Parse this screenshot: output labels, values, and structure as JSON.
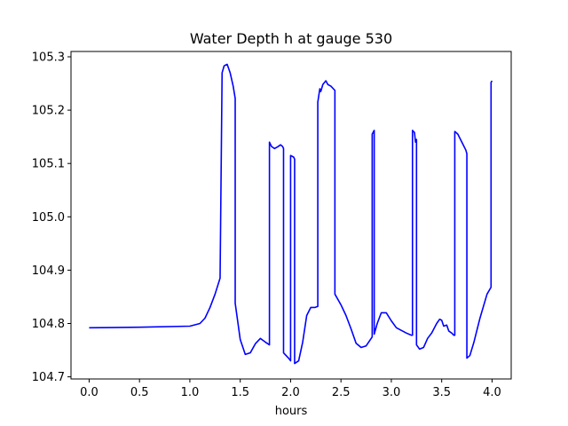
{
  "chart_data": {
    "type": "line",
    "title": "Water Depth h at gauge 530",
    "xlabel": "hours",
    "ylabel": "",
    "xlim": [
      -0.18,
      4.19
    ],
    "ylim": [
      104.696,
      105.31
    ],
    "xticks": [
      0.0,
      0.5,
      1.0,
      1.5,
      2.0,
      2.5,
      3.0,
      3.5,
      4.0
    ],
    "xtick_labels": [
      "0.0",
      "0.5",
      "1.0",
      "1.5",
      "2.0",
      "2.5",
      "3.0",
      "3.5",
      "4.0"
    ],
    "yticks": [
      104.7,
      104.8,
      104.9,
      105.0,
      105.1,
      105.2,
      105.3
    ],
    "ytick_labels": [
      "104.7",
      "104.8",
      "104.9",
      "105.0",
      "105.1",
      "105.2",
      "105.3"
    ],
    "grid": false,
    "legend": "none",
    "series": [
      {
        "color": "#0000ff",
        "x": [
          0.0,
          0.5,
          1.0,
          1.1,
          1.15,
          1.2,
          1.25,
          1.3,
          1.32,
          1.32,
          1.34,
          1.37,
          1.4,
          1.43,
          1.45,
          1.45,
          1.5,
          1.55,
          1.6,
          1.65,
          1.7,
          1.75,
          1.79,
          1.79,
          1.81,
          1.84,
          1.87,
          1.9,
          1.92,
          1.93,
          1.93,
          1.98,
          2.0,
          2.0,
          2.03,
          2.04,
          2.04,
          2.08,
          2.12,
          2.16,
          2.2,
          2.24,
          2.27,
          2.27,
          2.29,
          2.3,
          2.32,
          2.35,
          2.37,
          2.4,
          2.44,
          2.44,
          2.5,
          2.55,
          2.6,
          2.65,
          2.7,
          2.75,
          2.8,
          2.81,
          2.81,
          2.83,
          2.83,
          2.86,
          2.9,
          2.95,
          3.0,
          3.05,
          3.1,
          3.15,
          3.2,
          3.21,
          3.21,
          3.23,
          3.24,
          3.25,
          3.25,
          3.28,
          3.32,
          3.36,
          3.4,
          3.45,
          3.48,
          3.5,
          3.52,
          3.55,
          3.57,
          3.6,
          3.62,
          3.63,
          3.63,
          3.66,
          3.7,
          3.74,
          3.75,
          3.75,
          3.78,
          3.82,
          3.88,
          3.95,
          3.99,
          3.99,
          4.0
        ],
        "y": [
          104.792,
          104.793,
          104.795,
          104.8,
          104.81,
          104.83,
          104.855,
          104.885,
          105.27,
          105.27,
          105.283,
          105.286,
          105.27,
          105.245,
          105.222,
          104.838,
          104.77,
          104.742,
          104.745,
          104.762,
          104.772,
          104.765,
          104.76,
          105.14,
          105.132,
          105.128,
          105.131,
          105.135,
          105.132,
          105.128,
          104.745,
          104.735,
          104.73,
          105.115,
          105.112,
          105.108,
          104.725,
          104.73,
          104.765,
          104.815,
          104.83,
          104.83,
          104.832,
          105.215,
          105.24,
          105.235,
          105.248,
          105.255,
          105.248,
          105.245,
          105.237,
          104.855,
          104.835,
          104.815,
          104.79,
          104.763,
          104.755,
          104.758,
          104.772,
          104.775,
          105.155,
          105.162,
          104.78,
          104.8,
          104.82,
          104.82,
          104.805,
          104.792,
          104.787,
          104.782,
          104.778,
          104.778,
          105.162,
          105.158,
          105.14,
          105.145,
          104.76,
          104.752,
          104.755,
          104.772,
          104.782,
          104.8,
          104.808,
          104.806,
          104.795,
          104.797,
          104.786,
          104.782,
          104.778,
          104.778,
          105.16,
          105.155,
          105.14,
          105.125,
          105.118,
          104.735,
          104.74,
          104.765,
          104.81,
          104.855,
          104.868,
          105.252,
          105.255
        ]
      }
    ]
  }
}
